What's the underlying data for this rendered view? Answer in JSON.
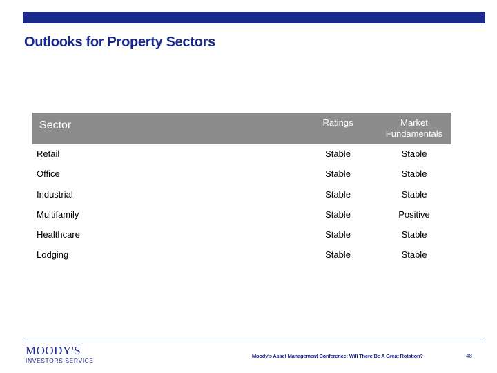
{
  "slide": {
    "title": "Outlooks for Property Sectors"
  },
  "table": {
    "headers": {
      "sector": "Sector",
      "ratings": "Ratings",
      "market_line1": "Market",
      "market_line2": "Fundamentals"
    },
    "rows": [
      {
        "sector": "Retail",
        "ratings": "Stable",
        "market": "Stable"
      },
      {
        "sector": "Office",
        "ratings": "Stable",
        "market": "Stable"
      },
      {
        "sector": "Industrial",
        "ratings": "Stable",
        "market": "Stable"
      },
      {
        "sector": "Multifamily",
        "ratings": "Stable",
        "market": "Positive"
      },
      {
        "sector": "Healthcare",
        "ratings": "Stable",
        "market": "Stable"
      },
      {
        "sector": "Lodging",
        "ratings": "Stable",
        "market": "Stable"
      }
    ]
  },
  "footer": {
    "logo_main": "MOODY'S",
    "logo_sub": "INVESTORS SERVICE",
    "conference": "Moody's Asset Management Conference: Will There Be A Great Rotation?",
    "page_number": "48"
  },
  "colors": {
    "brand_blue": "#1a2a8c",
    "header_gray": "#8c8c8c"
  }
}
